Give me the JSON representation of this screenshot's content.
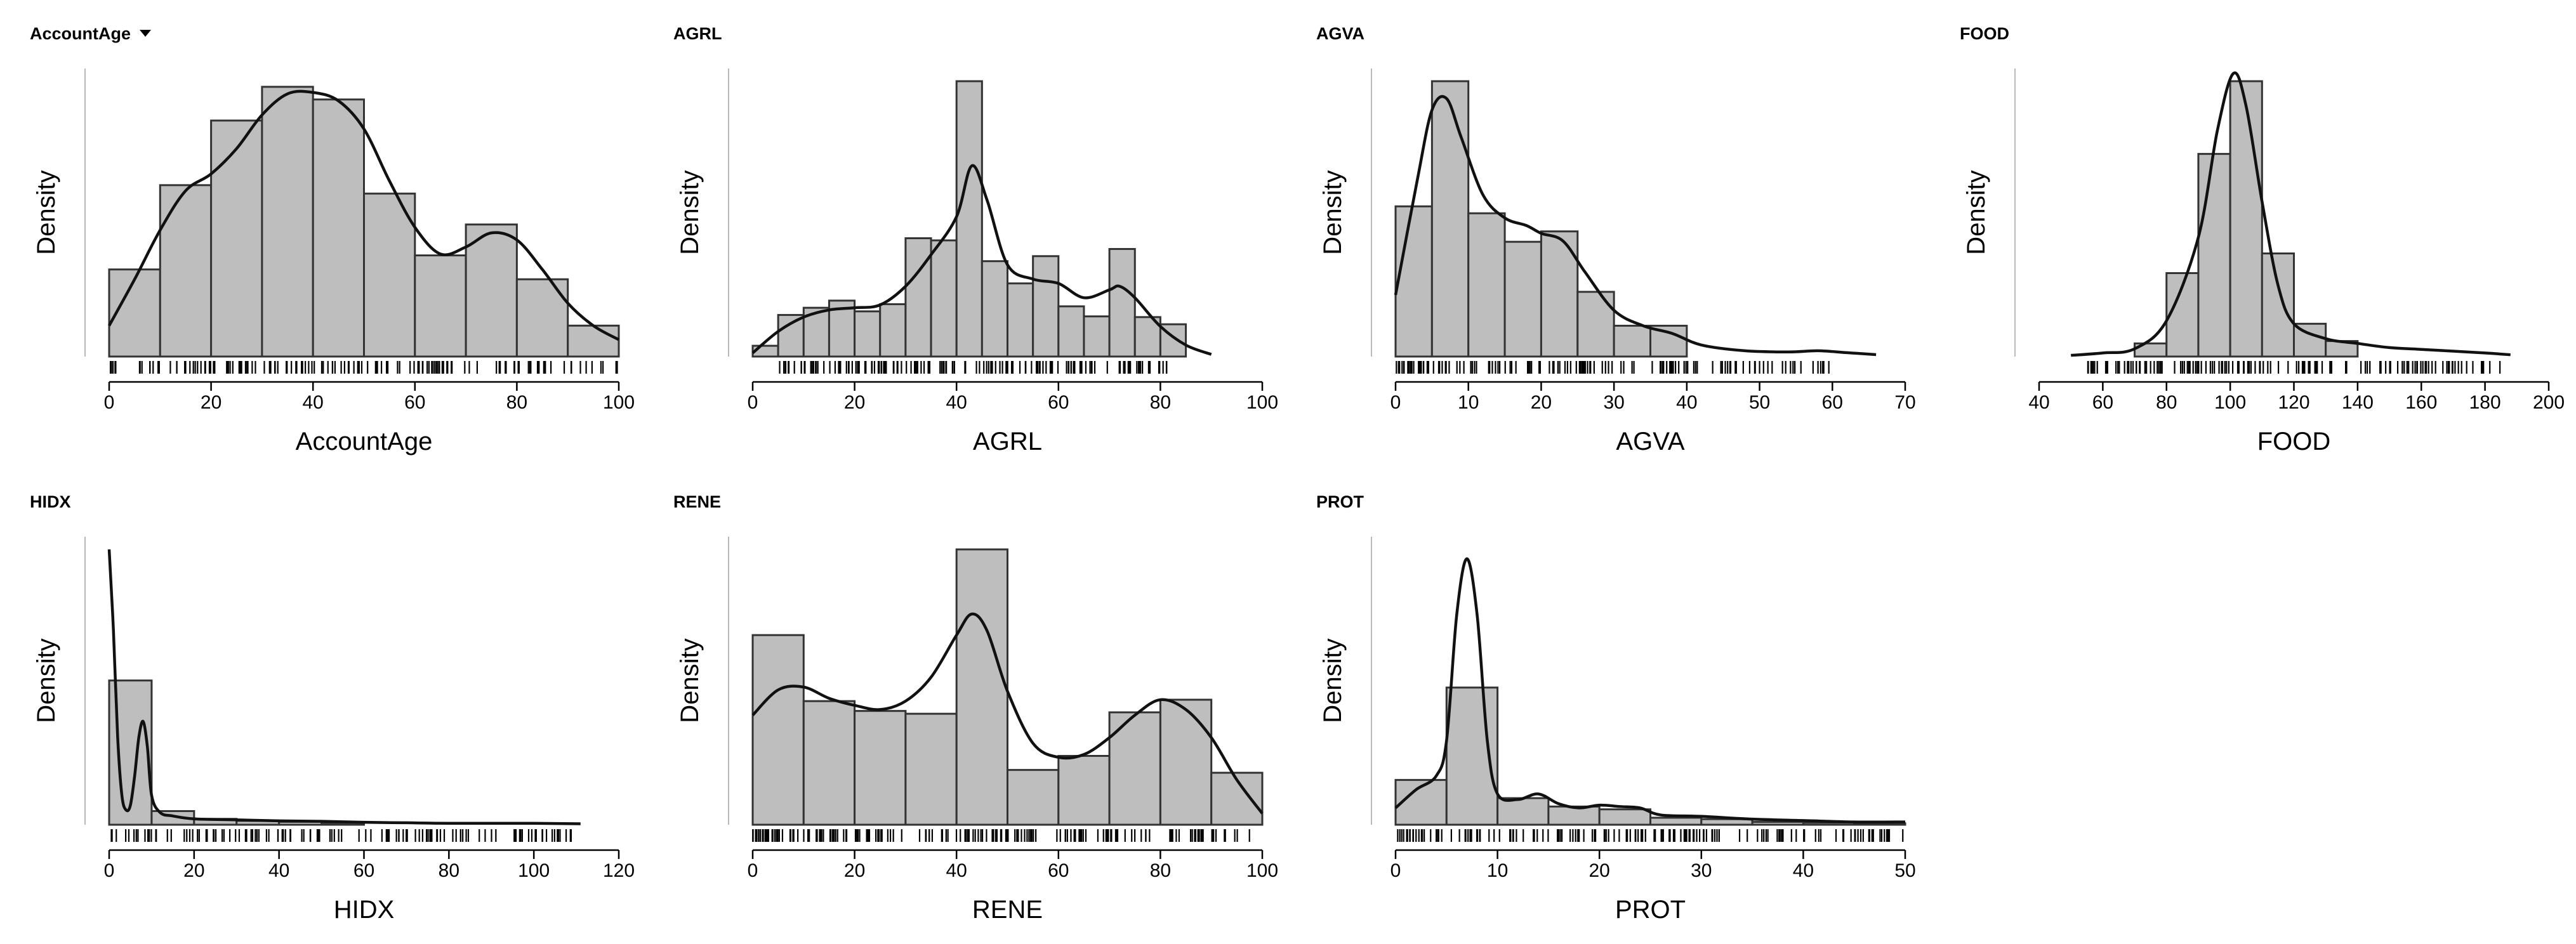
{
  "chart_data": [
    {
      "type": "histogram-density",
      "title": "AccountAge",
      "has_dropdown": true,
      "xlabel": "AccountAge",
      "ylabel": "Density",
      "xlim": [
        0,
        100
      ],
      "xticks": [
        0,
        20,
        40,
        60,
        80,
        100
      ],
      "ymax": 0.0196,
      "bins": [
        {
          "x0": 0,
          "x1": 10,
          "d": 0.0062
        },
        {
          "x0": 10,
          "x1": 20,
          "d": 0.0122
        },
        {
          "x0": 20,
          "x1": 30,
          "d": 0.0168
        },
        {
          "x0": 30,
          "x1": 40,
          "d": 0.0192
        },
        {
          "x0": 40,
          "x1": 50,
          "d": 0.0183
        },
        {
          "x0": 50,
          "x1": 60,
          "d": 0.0116
        },
        {
          "x0": 60,
          "x1": 70,
          "d": 0.0072
        },
        {
          "x0": 70,
          "x1": 80,
          "d": 0.0094
        },
        {
          "x0": 80,
          "x1": 90,
          "d": 0.0055
        },
        {
          "x0": 90,
          "x1": 100,
          "d": 0.0022
        }
      ],
      "density": [
        [
          0,
          0.0022
        ],
        [
          5,
          0.0055
        ],
        [
          10,
          0.009
        ],
        [
          15,
          0.0118
        ],
        [
          20,
          0.013
        ],
        [
          25,
          0.0148
        ],
        [
          30,
          0.0172
        ],
        [
          35,
          0.0187
        ],
        [
          40,
          0.0188
        ],
        [
          45,
          0.0182
        ],
        [
          50,
          0.0162
        ],
        [
          55,
          0.0125
        ],
        [
          60,
          0.0092
        ],
        [
          65,
          0.0073
        ],
        [
          70,
          0.0078
        ],
        [
          75,
          0.0088
        ],
        [
          80,
          0.0083
        ],
        [
          85,
          0.0062
        ],
        [
          90,
          0.0038
        ],
        [
          95,
          0.0022
        ],
        [
          100,
          0.0012
        ]
      ],
      "rug": {
        "min": 0,
        "max": 100,
        "count": 150
      }
    },
    {
      "type": "histogram-density",
      "title": "AGRL",
      "has_dropdown": false,
      "xlabel": "AGRL",
      "ylabel": "Density",
      "xlim": [
        0,
        100
      ],
      "xticks": [
        0,
        20,
        40,
        60,
        80,
        100
      ],
      "ymax": 0.0384,
      "bins": [
        {
          "x0": 0,
          "x1": 5,
          "d": 0.0015
        },
        {
          "x0": 5,
          "x1": 10,
          "d": 0.0058
        },
        {
          "x0": 10,
          "x1": 15,
          "d": 0.0068
        },
        {
          "x0": 15,
          "x1": 20,
          "d": 0.0078
        },
        {
          "x0": 20,
          "x1": 25,
          "d": 0.0063
        },
        {
          "x0": 25,
          "x1": 30,
          "d": 0.0073
        },
        {
          "x0": 30,
          "x1": 35,
          "d": 0.0165
        },
        {
          "x0": 35,
          "x1": 40,
          "d": 0.0162
        },
        {
          "x0": 40,
          "x1": 45,
          "d": 0.0384
        },
        {
          "x0": 45,
          "x1": 50,
          "d": 0.0133
        },
        {
          "x0": 50,
          "x1": 55,
          "d": 0.0102
        },
        {
          "x0": 55,
          "x1": 60,
          "d": 0.014
        },
        {
          "x0": 60,
          "x1": 65,
          "d": 0.007
        },
        {
          "x0": 65,
          "x1": 70,
          "d": 0.0056
        },
        {
          "x0": 70,
          "x1": 75,
          "d": 0.015
        },
        {
          "x0": 75,
          "x1": 80,
          "d": 0.0055
        },
        {
          "x0": 80,
          "x1": 85,
          "d": 0.0045
        }
      ],
      "density": [
        [
          0,
          0.0005
        ],
        [
          5,
          0.0035
        ],
        [
          10,
          0.0055
        ],
        [
          15,
          0.0065
        ],
        [
          20,
          0.0068
        ],
        [
          25,
          0.0072
        ],
        [
          30,
          0.0098
        ],
        [
          35,
          0.0142
        ],
        [
          40,
          0.0195
        ],
        [
          43,
          0.0266
        ],
        [
          46,
          0.0218
        ],
        [
          50,
          0.0128
        ],
        [
          55,
          0.0108
        ],
        [
          60,
          0.0102
        ],
        [
          65,
          0.0082
        ],
        [
          70,
          0.0093
        ],
        [
          72,
          0.0098
        ],
        [
          75,
          0.0082
        ],
        [
          80,
          0.0042
        ],
        [
          85,
          0.0016
        ],
        [
          90,
          0.0003
        ]
      ],
      "rug": {
        "min": 5,
        "max": 82,
        "count": 150
      }
    },
    {
      "type": "histogram-density",
      "title": "AGVA",
      "has_dropdown": false,
      "xlabel": "AGVA",
      "ylabel": "Density",
      "xlim": [
        0,
        70
      ],
      "xticks": [
        0,
        10,
        20,
        30,
        40,
        50,
        60,
        70
      ],
      "ymax": 0.0715,
      "bins": [
        {
          "x0": 0,
          "x1": 5,
          "d": 0.039
        },
        {
          "x0": 5,
          "x1": 10,
          "d": 0.0715
        },
        {
          "x0": 10,
          "x1": 15,
          "d": 0.0372
        },
        {
          "x0": 15,
          "x1": 20,
          "d": 0.0298
        },
        {
          "x0": 20,
          "x1": 25,
          "d": 0.0325
        },
        {
          "x0": 25,
          "x1": 30,
          "d": 0.0168
        },
        {
          "x0": 30,
          "x1": 35,
          "d": 0.008
        },
        {
          "x0": 35,
          "x1": 40,
          "d": 0.008
        }
      ],
      "density": [
        [
          0,
          0.016
        ],
        [
          3,
          0.046
        ],
        [
          5,
          0.064
        ],
        [
          7,
          0.067
        ],
        [
          9,
          0.057
        ],
        [
          12,
          0.042
        ],
        [
          15,
          0.036
        ],
        [
          18,
          0.034
        ],
        [
          20,
          0.032
        ],
        [
          23,
          0.03
        ],
        [
          26,
          0.022
        ],
        [
          30,
          0.012
        ],
        [
          34,
          0.008
        ],
        [
          38,
          0.006
        ],
        [
          42,
          0.003
        ],
        [
          48,
          0.0015
        ],
        [
          54,
          0.0012
        ],
        [
          58,
          0.0015
        ],
        [
          62,
          0.001
        ],
        [
          66,
          0.0005
        ]
      ],
      "rug": {
        "min": 0,
        "max": 60,
        "count": 130
      }
    },
    {
      "type": "histogram-density",
      "title": "FOOD",
      "has_dropdown": false,
      "xlabel": "FOOD",
      "ylabel": "Density",
      "xlim": [
        40,
        200
      ],
      "xticks": [
        40,
        60,
        80,
        100,
        120,
        140,
        160,
        180,
        200
      ],
      "ymax": 0.0462,
      "bins": [
        {
          "x0": 70,
          "x1": 80,
          "d": 0.0022
        },
        {
          "x0": 80,
          "x1": 90,
          "d": 0.014
        },
        {
          "x0": 90,
          "x1": 100,
          "d": 0.034
        },
        {
          "x0": 100,
          "x1": 110,
          "d": 0.0462
        },
        {
          "x0": 110,
          "x1": 120,
          "d": 0.0173
        },
        {
          "x0": 120,
          "x1": 130,
          "d": 0.0055
        },
        {
          "x0": 130,
          "x1": 140,
          "d": 0.0026
        }
      ],
      "density": [
        [
          50,
          0.0002
        ],
        [
          60,
          0.0006
        ],
        [
          70,
          0.0013
        ],
        [
          80,
          0.006
        ],
        [
          90,
          0.02
        ],
        [
          96,
          0.038
        ],
        [
          101,
          0.0475
        ],
        [
          105,
          0.042
        ],
        [
          110,
          0.026
        ],
        [
          115,
          0.012
        ],
        [
          120,
          0.0055
        ],
        [
          130,
          0.003
        ],
        [
          140,
          0.0022
        ],
        [
          150,
          0.0015
        ],
        [
          160,
          0.0012
        ],
        [
          170,
          0.0009
        ],
        [
          180,
          0.0006
        ],
        [
          188,
          0.0003
        ]
      ],
      "rug": {
        "min": 55,
        "max": 185,
        "count": 140
      }
    },
    {
      "type": "histogram-density",
      "title": "HIDX",
      "has_dropdown": false,
      "xlabel": "HIDX",
      "ylabel": "Density",
      "xlim": [
        0,
        120
      ],
      "xticks": [
        0,
        20,
        40,
        60,
        80,
        100,
        120
      ],
      "ymax": 0.0565,
      "bins": [
        {
          "x0": 0,
          "x1": 10,
          "d": 0.0296
        },
        {
          "x0": 10,
          "x1": 20,
          "d": 0.0028
        },
        {
          "x0": 20,
          "x1": 30,
          "d": 0.0012
        },
        {
          "x0": 30,
          "x1": 40,
          "d": 0.0008
        },
        {
          "x0": 40,
          "x1": 50,
          "d": 0.0006
        },
        {
          "x0": 50,
          "x1": 60,
          "d": 0.0004
        }
      ],
      "density": [
        [
          0,
          0.0565
        ],
        [
          1,
          0.04
        ],
        [
          2,
          0.018
        ],
        [
          3,
          0.006
        ],
        [
          4,
          0.003
        ],
        [
          5,
          0.004
        ],
        [
          6,
          0.01
        ],
        [
          7,
          0.018
        ],
        [
          8,
          0.0212
        ],
        [
          9,
          0.016
        ],
        [
          10,
          0.006
        ],
        [
          12,
          0.0025
        ],
        [
          15,
          0.0018
        ],
        [
          20,
          0.0012
        ],
        [
          30,
          0.001
        ],
        [
          40,
          0.0008
        ],
        [
          50,
          0.0007
        ],
        [
          60,
          0.0005
        ],
        [
          70,
          0.0004
        ],
        [
          80,
          0.0003
        ],
        [
          100,
          0.0003
        ],
        [
          111,
          0.0002
        ]
      ],
      "rug": {
        "min": 0,
        "max": 110,
        "count": 120
      }
    },
    {
      "type": "histogram-density",
      "title": "RENE",
      "has_dropdown": false,
      "xlabel": "RENE",
      "ylabel": "Density",
      "xlim": [
        0,
        100
      ],
      "xticks": [
        0,
        20,
        40,
        60,
        80,
        100
      ],
      "ymax": 0.0196,
      "bins": [
        {
          "x0": 0,
          "x1": 10,
          "d": 0.0135
        },
        {
          "x0": 10,
          "x1": 20,
          "d": 0.0088
        },
        {
          "x0": 20,
          "x1": 30,
          "d": 0.0081
        },
        {
          "x0": 30,
          "x1": 40,
          "d": 0.0079
        },
        {
          "x0": 40,
          "x1": 50,
          "d": 0.0196
        },
        {
          "x0": 50,
          "x1": 60,
          "d": 0.0039
        },
        {
          "x0": 60,
          "x1": 70,
          "d": 0.0049
        },
        {
          "x0": 70,
          "x1": 80,
          "d": 0.008
        },
        {
          "x0": 80,
          "x1": 90,
          "d": 0.0089
        },
        {
          "x0": 90,
          "x1": 100,
          "d": 0.0037
        }
      ],
      "density": [
        [
          0,
          0.0078
        ],
        [
          5,
          0.0096
        ],
        [
          10,
          0.0098
        ],
        [
          15,
          0.009
        ],
        [
          20,
          0.0085
        ],
        [
          25,
          0.0082
        ],
        [
          30,
          0.0088
        ],
        [
          35,
          0.0105
        ],
        [
          40,
          0.0135
        ],
        [
          43,
          0.015
        ],
        [
          46,
          0.0138
        ],
        [
          50,
          0.0095
        ],
        [
          55,
          0.0058
        ],
        [
          60,
          0.0048
        ],
        [
          65,
          0.005
        ],
        [
          70,
          0.0062
        ],
        [
          75,
          0.0078
        ],
        [
          80,
          0.0089
        ],
        [
          85,
          0.0082
        ],
        [
          90,
          0.0062
        ],
        [
          95,
          0.0032
        ],
        [
          100,
          0.0008
        ]
      ],
      "rug": {
        "min": 0,
        "max": 100,
        "count": 170
      }
    },
    {
      "type": "histogram-density",
      "title": "PROT",
      "has_dropdown": false,
      "xlabel": "PROT",
      "ylabel": "Density",
      "xlim": [
        0,
        50
      ],
      "xticks": [
        0,
        10,
        20,
        30,
        40,
        50
      ],
      "ymax": 0.1967,
      "bins": [
        {
          "x0": 0,
          "x1": 5,
          "d": 0.032
        },
        {
          "x0": 5,
          "x1": 10,
          "d": 0.098
        },
        {
          "x0": 10,
          "x1": 15,
          "d": 0.019
        },
        {
          "x0": 15,
          "x1": 20,
          "d": 0.013
        },
        {
          "x0": 20,
          "x1": 25,
          "d": 0.011
        },
        {
          "x0": 25,
          "x1": 30,
          "d": 0.005
        },
        {
          "x0": 30,
          "x1": 35,
          "d": 0.004
        },
        {
          "x0": 35,
          "x1": 40,
          "d": 0.002
        },
        {
          "x0": 40,
          "x1": 45,
          "d": 0.0015
        },
        {
          "x0": 45,
          "x1": 50,
          "d": 0.001
        }
      ],
      "density": [
        [
          0,
          0.012
        ],
        [
          2,
          0.025
        ],
        [
          4,
          0.035
        ],
        [
          5,
          0.06
        ],
        [
          6,
          0.15
        ],
        [
          7,
          0.19
        ],
        [
          8,
          0.15
        ],
        [
          9,
          0.06
        ],
        [
          10,
          0.022
        ],
        [
          12,
          0.018
        ],
        [
          14,
          0.022
        ],
        [
          16,
          0.015
        ],
        [
          18,
          0.012
        ],
        [
          20,
          0.014
        ],
        [
          22,
          0.013
        ],
        [
          24,
          0.012
        ],
        [
          26,
          0.007
        ],
        [
          30,
          0.006
        ],
        [
          35,
          0.004
        ],
        [
          40,
          0.003
        ],
        [
          45,
          0.002
        ],
        [
          50,
          0.002
        ]
      ],
      "rug": {
        "min": 0,
        "max": 50,
        "count": 150
      }
    }
  ]
}
